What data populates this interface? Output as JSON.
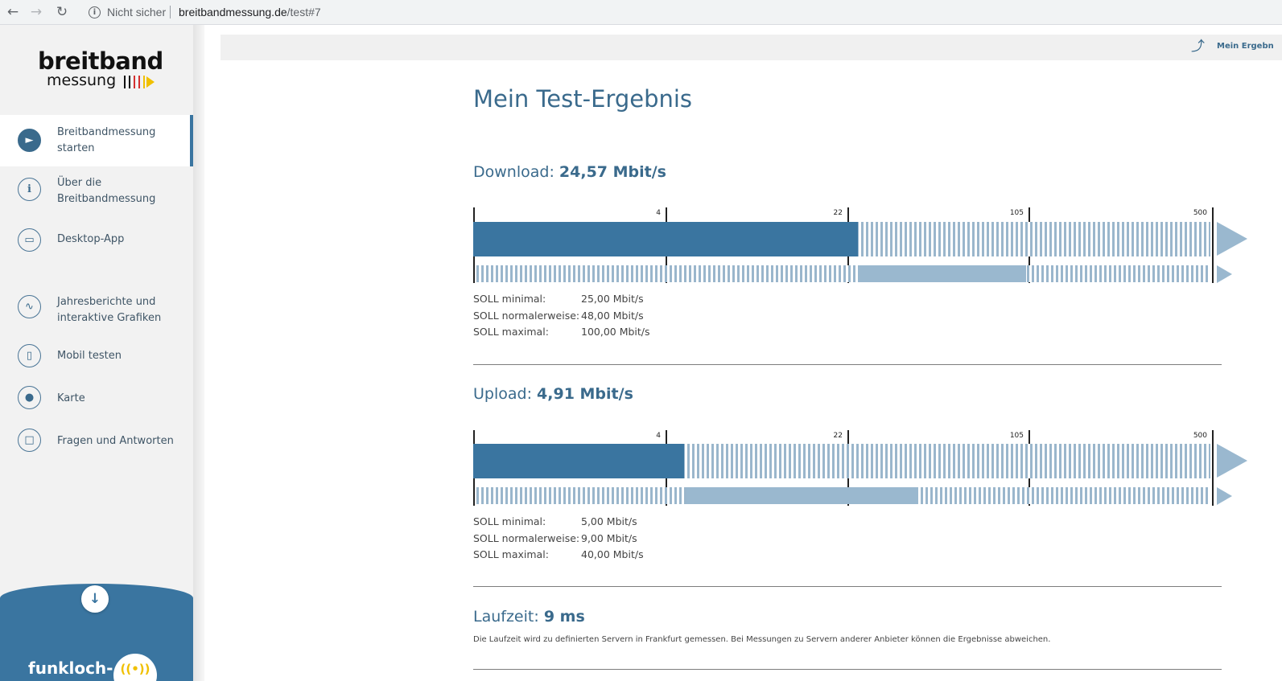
{
  "browser": {
    "security_label": "Nicht sicher",
    "url_host": "breitbandmessung.de",
    "url_path": "/test#7"
  },
  "sidebar": {
    "logo_main": "breitband",
    "logo_sub": "messung",
    "items": [
      {
        "label": "Breitbandmessung starten",
        "icon": "play-icon",
        "active": true
      },
      {
        "label": "Über die Breitbandmessung",
        "icon": "info-icon",
        "active": false
      },
      {
        "label": "Desktop-App",
        "icon": "monitor-icon",
        "active": false
      },
      {
        "label": "Jahresberichte und interaktive Grafiken",
        "icon": "chart-icon",
        "active": false
      },
      {
        "label": "Mobil testen",
        "icon": "phone-icon",
        "active": false
      },
      {
        "label": "Karte",
        "icon": "map-pin-icon",
        "active": false
      },
      {
        "label": "Fragen und Antworten",
        "icon": "chat-icon",
        "active": false
      }
    ],
    "funkloch_label": "funkloch-"
  },
  "header": {
    "share_label": "Mein Ergebn"
  },
  "main": {
    "title": "Mein Test-Ergebnis",
    "scale_ticks": [
      "4",
      "22",
      "105",
      "500"
    ],
    "download": {
      "label": "Download:",
      "value": "24,57 Mbit/s",
      "soll": [
        {
          "key": "SOLL minimal:",
          "value": "25,00 Mbit/s"
        },
        {
          "key": "SOLL normalerweise:",
          "value": "48,00 Mbit/s"
        },
        {
          "key": "SOLL maximal:",
          "value": "100,00 Mbit/s"
        }
      ]
    },
    "upload": {
      "label": "Upload:",
      "value": "4,91 Mbit/s",
      "soll": [
        {
          "key": "SOLL minimal:",
          "value": "5,00 Mbit/s"
        },
        {
          "key": "SOLL normalerweise:",
          "value": "9,00 Mbit/s"
        },
        {
          "key": "SOLL maximal:",
          "value": "40,00 Mbit/s"
        }
      ]
    },
    "latency": {
      "label": "Laufzeit:",
      "value": "9 ms",
      "note": "Die Laufzeit wird zu definierten Servern in Frankfurt gemessen. Bei Messungen zu Servern anderer Anbieter können die Ergebnisse abweichen."
    }
  },
  "colors": {
    "accent": "#3a75a0",
    "accent_light": "#9ab8cf",
    "text_blue": "#3a6a8c",
    "logo_yellow": "#f0c000"
  }
}
